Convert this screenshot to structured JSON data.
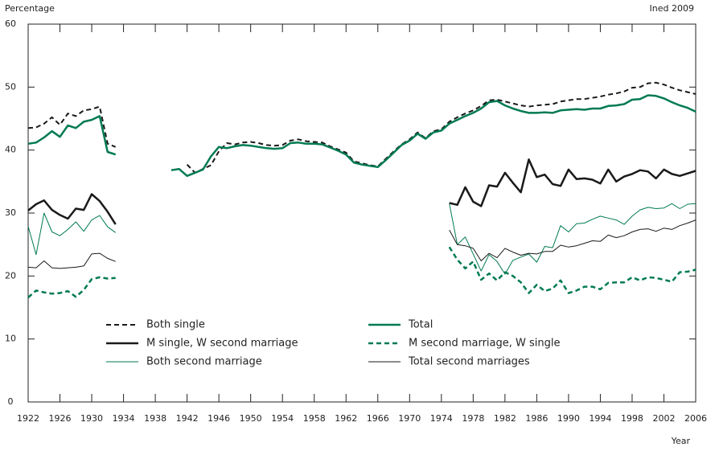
{
  "chart_data": {
    "type": "line",
    "y_label": "Percentage",
    "x_label": "Year",
    "source": "Ined 2009",
    "xlim": [
      1922,
      2006
    ],
    "ylim": [
      0,
      60
    ],
    "xticks": [
      1922,
      1926,
      1930,
      1934,
      1938,
      1942,
      1946,
      1950,
      1954,
      1958,
      1962,
      1966,
      1970,
      1974,
      1978,
      1982,
      1986,
      1990,
      1994,
      1998,
      2002,
      2006
    ],
    "yticks": [
      0,
      10,
      20,
      30,
      40,
      50,
      60
    ],
    "grid": false,
    "legend": "lower-left",
    "x": [
      1922,
      1923,
      1924,
      1925,
      1926,
      1927,
      1928,
      1929,
      1930,
      1931,
      1932,
      1933,
      1934,
      1935,
      1936,
      1937,
      1938,
      1939,
      1940,
      1941,
      1942,
      1943,
      1944,
      1945,
      1946,
      1947,
      1948,
      1949,
      1950,
      1951,
      1952,
      1953,
      1954,
      1955,
      1956,
      1957,
      1958,
      1959,
      1960,
      1961,
      1962,
      1963,
      1964,
      1965,
      1966,
      1967,
      1968,
      1969,
      1970,
      1971,
      1972,
      1973,
      1974,
      1975,
      1976,
      1977,
      1978,
      1979,
      1980,
      1981,
      1982,
      1983,
      1984,
      1985,
      1986,
      1987,
      1988,
      1989,
      1990,
      1991,
      1992,
      1993,
      1994,
      1995,
      1996,
      1997,
      1998,
      1999,
      2000,
      2001,
      2002,
      2003,
      2004,
      2005,
      2006
    ],
    "series": [
      {
        "name": "Both single",
        "color": "#1a1a1a",
        "width": 2,
        "dash": true,
        "values": [
          43.5,
          43.6,
          44.2,
          45.2,
          44.0,
          45.8,
          45.4,
          46.3,
          46.5,
          46.9,
          41.0,
          40.5,
          null,
          null,
          null,
          null,
          null,
          null,
          null,
          null,
          37.7,
          36.4,
          37.0,
          37.6,
          39.8,
          41.1,
          40.9,
          41.2,
          41.3,
          41.1,
          40.8,
          40.7,
          40.8,
          41.5,
          41.7,
          41.4,
          41.3,
          41.2,
          40.6,
          40.1,
          39.6,
          38.2,
          37.9,
          37.6,
          37.4,
          38.6,
          39.8,
          40.9,
          41.7,
          42.8,
          41.9,
          43.0,
          43.3,
          44.5,
          45.2,
          45.8,
          46.3,
          47.0,
          47.9,
          48.0,
          47.7,
          47.4,
          47.1,
          46.9,
          47.1,
          47.2,
          47.3,
          47.7,
          47.9,
          48.1,
          48.1,
          48.3,
          48.5,
          48.8,
          49.0,
          49.3,
          49.9,
          50.0,
          50.6,
          50.7,
          50.4,
          49.9,
          49.5,
          49.2,
          48.9
        ]
      },
      {
        "name": "Total",
        "color": "#007a53",
        "width": 2.5,
        "dash": false,
        "values": [
          41.0,
          41.2,
          42.0,
          43.0,
          42.1,
          43.9,
          43.5,
          44.5,
          44.8,
          45.4,
          39.7,
          39.3,
          null,
          null,
          null,
          null,
          null,
          null,
          36.8,
          37.0,
          35.9,
          36.4,
          36.9,
          39.0,
          40.5,
          40.3,
          40.6,
          40.8,
          40.7,
          40.5,
          40.3,
          40.2,
          40.3,
          41.1,
          41.2,
          41.0,
          41.0,
          40.9,
          40.4,
          39.9,
          39.3,
          38.0,
          37.7,
          37.5,
          37.3,
          38.4,
          39.6,
          40.8,
          41.5,
          42.6,
          41.8,
          42.8,
          43.1,
          44.2,
          44.8,
          45.4,
          45.9,
          46.6,
          47.6,
          47.8,
          47.1,
          46.6,
          46.2,
          45.9,
          45.9,
          46.0,
          45.9,
          46.3,
          46.4,
          46.5,
          46.4,
          46.6,
          46.6,
          47.0,
          47.1,
          47.3,
          48.0,
          48.1,
          48.7,
          48.6,
          48.2,
          47.6,
          47.1,
          46.7,
          46.1
        ]
      },
      {
        "name": "M single, W second marriage",
        "color": "#1a1a1a",
        "width": 2.5,
        "dash": false,
        "values": [
          30.4,
          31.4,
          32.0,
          30.5,
          29.7,
          29.1,
          30.7,
          30.5,
          33.0,
          31.9,
          30.2,
          28.2,
          null,
          null,
          null,
          null,
          null,
          null,
          null,
          null,
          null,
          null,
          null,
          null,
          null,
          null,
          null,
          null,
          null,
          null,
          null,
          null,
          null,
          null,
          null,
          null,
          null,
          null,
          null,
          null,
          null,
          null,
          null,
          null,
          null,
          null,
          null,
          null,
          null,
          null,
          null,
          null,
          null,
          31.6,
          31.3,
          34.1,
          31.8,
          31.1,
          34.4,
          34.2,
          36.4,
          34.8,
          33.3,
          38.5,
          35.7,
          36.1,
          34.6,
          34.3,
          36.9,
          35.4,
          35.5,
          35.3,
          34.7,
          36.9,
          35.0,
          35.8,
          36.2,
          36.8,
          36.6,
          35.5,
          36.9,
          36.2,
          35.9,
          36.3,
          36.7
        ]
      },
      {
        "name": "M second marriage, W single",
        "color": "#007a53",
        "width": 2.5,
        "dash": true,
        "values": [
          16.6,
          17.7,
          17.4,
          17.2,
          17.3,
          17.6,
          16.7,
          17.8,
          19.5,
          19.8,
          19.6,
          19.7,
          null,
          null,
          null,
          null,
          null,
          null,
          null,
          null,
          null,
          null,
          null,
          null,
          null,
          null,
          null,
          null,
          null,
          null,
          null,
          null,
          null,
          null,
          null,
          null,
          null,
          null,
          null,
          null,
          null,
          null,
          null,
          null,
          null,
          null,
          null,
          null,
          null,
          null,
          null,
          null,
          null,
          24.6,
          22.6,
          21.2,
          22.3,
          19.4,
          20.4,
          19.3,
          20.6,
          20.0,
          19.0,
          17.3,
          18.6,
          17.6,
          18.0,
          19.3,
          17.3,
          17.7,
          18.3,
          18.3,
          17.9,
          18.9,
          19.0,
          19.0,
          19.8,
          19.3,
          19.8,
          19.7,
          19.4,
          19.1,
          20.6,
          20.7,
          21.0
        ]
      },
      {
        "name": "Both second marriage",
        "color": "#007a53",
        "width": 1,
        "dash": false,
        "values": [
          27.9,
          23.4,
          30.0,
          27.0,
          26.4,
          27.4,
          28.6,
          27.1,
          28.9,
          29.6,
          27.8,
          26.9,
          null,
          null,
          null,
          null,
          null,
          null,
          null,
          null,
          null,
          null,
          null,
          null,
          null,
          null,
          null,
          null,
          null,
          null,
          null,
          null,
          null,
          null,
          null,
          null,
          null,
          null,
          null,
          null,
          null,
          null,
          null,
          null,
          null,
          null,
          null,
          null,
          null,
          null,
          null,
          null,
          null,
          31.5,
          25.0,
          26.2,
          23.5,
          20.8,
          23.4,
          22.3,
          20.3,
          22.5,
          23.0,
          23.5,
          22.2,
          24.7,
          24.5,
          28.0,
          27.0,
          28.3,
          28.4,
          29.0,
          29.5,
          29.2,
          28.9,
          28.2,
          29.5,
          30.5,
          30.9,
          30.7,
          30.8,
          31.5,
          30.7,
          31.4,
          31.5
        ]
      },
      {
        "name": "Total second marriages",
        "color": "#1a1a1a",
        "width": 1,
        "dash": false,
        "values": [
          21.4,
          21.3,
          22.4,
          21.3,
          21.2,
          21.3,
          21.4,
          21.6,
          23.5,
          23.6,
          22.8,
          22.3,
          null,
          null,
          null,
          null,
          null,
          null,
          null,
          null,
          null,
          null,
          null,
          null,
          null,
          null,
          null,
          null,
          null,
          null,
          null,
          null,
          null,
          null,
          null,
          null,
          null,
          null,
          null,
          null,
          null,
          null,
          null,
          null,
          null,
          null,
          null,
          null,
          null,
          null,
          null,
          null,
          null,
          27.3,
          25.0,
          24.8,
          24.4,
          22.4,
          23.6,
          22.9,
          24.4,
          23.8,
          23.3,
          23.6,
          23.5,
          23.9,
          23.9,
          24.9,
          24.6,
          24.8,
          25.2,
          25.6,
          25.5,
          26.5,
          26.1,
          26.4,
          27.0,
          27.4,
          27.5,
          27.1,
          27.6,
          27.4,
          28.0,
          28.4,
          28.9
        ]
      }
    ]
  }
}
